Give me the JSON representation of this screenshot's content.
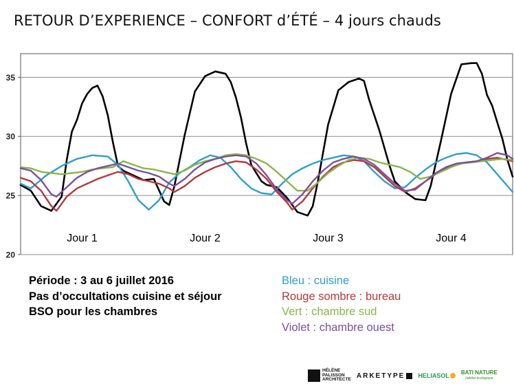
{
  "title": "RETOUR D’EXPERIENCE – CONFORT d’ÉTÉ – 4 jours chauds",
  "info_lines": [
    "Période : 3 au 6 juillet 2016",
    "Pas d’occultations cuisine et séjour",
    "BSO pour les chambres"
  ],
  "legend_items": [
    {
      "label": "Bleu : cuisine",
      "color": "#2e9fc8"
    },
    {
      "label": "Rouge sombre : bureau",
      "color": "#b5383b"
    },
    {
      "label": "Vert : chambre sud",
      "color": "#86b84a"
    },
    {
      "label": "Violet : chambre ouest",
      "color": "#7b4fa0"
    }
  ],
  "logos": {
    "helene_palisson": [
      "HÉLÈNE",
      "PALISSON",
      "ARCHITECTE"
    ],
    "arketype": "ARKETYPE",
    "heliasol": "HELIASOL",
    "bati_nature": [
      "BATI NATURE",
      "habitat écologique"
    ]
  },
  "chart_data": {
    "type": "line",
    "xlim": [
      0,
      96
    ],
    "ylim": [
      20,
      37
    ],
    "yticks": [
      20,
      25,
      30,
      35
    ],
    "day_labels": [
      {
        "label": "Jour 1",
        "x": 12
      },
      {
        "label": "Jour 2",
        "x": 36
      },
      {
        "label": "Jour 3",
        "x": 60
      },
      {
        "label": "Jour 4",
        "x": 84
      }
    ],
    "series": [
      {
        "key": "outdoor",
        "color": "#000000",
        "width": 2.6,
        "points": [
          [
            0,
            25.9
          ],
          [
            2,
            25.4
          ],
          [
            4,
            24.1
          ],
          [
            6,
            23.7
          ],
          [
            8,
            24.9
          ],
          [
            9,
            28.0
          ],
          [
            10,
            30.4
          ],
          [
            11,
            31.4
          ],
          [
            12,
            32.8
          ],
          [
            13,
            33.6
          ],
          [
            14,
            34.1
          ],
          [
            15,
            34.3
          ],
          [
            16,
            33.4
          ],
          [
            17,
            31.8
          ],
          [
            18,
            29.5
          ],
          [
            19,
            27.5
          ],
          [
            20,
            27.1
          ],
          [
            22,
            26.7
          ],
          [
            24,
            26.3
          ],
          [
            26,
            26.4
          ],
          [
            28,
            24.5
          ],
          [
            29,
            24.2
          ],
          [
            30,
            25.8
          ],
          [
            32,
            30.1
          ],
          [
            34,
            33.8
          ],
          [
            36,
            35.1
          ],
          [
            38,
            35.5
          ],
          [
            40,
            35.3
          ],
          [
            41,
            34.6
          ],
          [
            42,
            33.3
          ],
          [
            43,
            31.6
          ],
          [
            44,
            29.4
          ],
          [
            45,
            27.6
          ],
          [
            47,
            26.2
          ],
          [
            48,
            25.9
          ],
          [
            50,
            25.7
          ],
          [
            52,
            24.8
          ],
          [
            54,
            23.6
          ],
          [
            56,
            23.3
          ],
          [
            57,
            24.1
          ],
          [
            58,
            26.2
          ],
          [
            60,
            31.0
          ],
          [
            62,
            33.9
          ],
          [
            64,
            34.6
          ],
          [
            66,
            34.9
          ],
          [
            67,
            34.7
          ],
          [
            68,
            33.1
          ],
          [
            70,
            30.5
          ],
          [
            72,
            27.5
          ],
          [
            73,
            26.2
          ],
          [
            75,
            25.3
          ],
          [
            77,
            24.7
          ],
          [
            79,
            24.6
          ],
          [
            80,
            25.8
          ],
          [
            82,
            29.6
          ],
          [
            84,
            33.6
          ],
          [
            86,
            36.1
          ],
          [
            88,
            36.2
          ],
          [
            89,
            36.2
          ],
          [
            90,
            35.3
          ],
          [
            91,
            33.5
          ],
          [
            92,
            32.6
          ],
          [
            93,
            31.2
          ],
          [
            94,
            29.8
          ],
          [
            95,
            28.0
          ],
          [
            96,
            26.6
          ]
        ]
      },
      {
        "key": "cuisine",
        "color": "#2e9fc8",
        "width": 2.4,
        "points": [
          [
            0,
            26.0
          ],
          [
            2,
            25.6
          ],
          [
            5,
            26.7
          ],
          [
            8,
            27.5
          ],
          [
            11,
            28.1
          ],
          [
            14,
            28.4
          ],
          [
            17,
            28.3
          ],
          [
            19,
            27.6
          ],
          [
            21,
            26.2
          ],
          [
            23,
            24.6
          ],
          [
            25,
            23.8
          ],
          [
            27,
            24.6
          ],
          [
            29,
            26.1
          ],
          [
            31,
            26.9
          ],
          [
            33,
            27.4
          ],
          [
            35,
            28.0
          ],
          [
            37,
            28.4
          ],
          [
            39,
            28.2
          ],
          [
            41,
            27.4
          ],
          [
            43,
            26.4
          ],
          [
            45,
            25.6
          ],
          [
            47,
            25.2
          ],
          [
            49,
            25.1
          ],
          [
            51,
            26.0
          ],
          [
            53,
            26.8
          ],
          [
            55,
            27.3
          ],
          [
            57,
            27.7
          ],
          [
            59,
            28.0
          ],
          [
            61,
            28.2
          ],
          [
            63,
            28.4
          ],
          [
            65,
            28.3
          ],
          [
            67,
            27.9
          ],
          [
            69,
            27.0
          ],
          [
            71,
            26.2
          ],
          [
            73,
            25.6
          ],
          [
            75,
            25.7
          ],
          [
            77,
            26.5
          ],
          [
            79,
            27.2
          ],
          [
            81,
            27.8
          ],
          [
            83,
            28.2
          ],
          [
            85,
            28.5
          ],
          [
            87,
            28.6
          ],
          [
            89,
            28.4
          ],
          [
            91,
            27.8
          ],
          [
            93,
            26.8
          ],
          [
            95,
            25.8
          ],
          [
            96,
            25.3
          ]
        ]
      },
      {
        "key": "bureau",
        "color": "#b5383b",
        "width": 2.4,
        "points": [
          [
            0,
            26.5
          ],
          [
            2,
            26.2
          ],
          [
            4,
            25.4
          ],
          [
            6,
            24.1
          ],
          [
            7,
            23.7
          ],
          [
            9,
            24.9
          ],
          [
            11,
            25.6
          ],
          [
            13,
            26.0
          ],
          [
            15,
            26.4
          ],
          [
            17,
            26.7
          ],
          [
            19,
            27.0
          ],
          [
            21,
            26.8
          ],
          [
            23,
            26.4
          ],
          [
            25,
            26.2
          ],
          [
            27,
            26.0
          ],
          [
            29,
            25.6
          ],
          [
            30,
            25.3
          ],
          [
            32,
            25.8
          ],
          [
            34,
            26.5
          ],
          [
            36,
            27.0
          ],
          [
            38,
            27.4
          ],
          [
            40,
            27.7
          ],
          [
            42,
            27.9
          ],
          [
            44,
            27.8
          ],
          [
            46,
            27.2
          ],
          [
            48,
            26.4
          ],
          [
            50,
            25.3
          ],
          [
            52,
            24.4
          ],
          [
            53,
            23.8
          ],
          [
            55,
            24.5
          ],
          [
            57,
            25.6
          ],
          [
            59,
            26.6
          ],
          [
            61,
            27.4
          ],
          [
            63,
            27.8
          ],
          [
            65,
            28.0
          ],
          [
            67,
            27.9
          ],
          [
            69,
            27.4
          ],
          [
            71,
            26.6
          ],
          [
            73,
            25.8
          ],
          [
            75,
            25.3
          ],
          [
            77,
            25.6
          ],
          [
            79,
            26.2
          ],
          [
            81,
            26.8
          ],
          [
            83,
            27.3
          ],
          [
            85,
            27.6
          ],
          [
            87,
            27.8
          ],
          [
            89,
            27.9
          ],
          [
            91,
            28.1
          ],
          [
            93,
            28.2
          ],
          [
            95,
            28.0
          ],
          [
            96,
            27.9
          ]
        ]
      },
      {
        "key": "chambre_sud",
        "color": "#86b84a",
        "width": 2.4,
        "points": [
          [
            0,
            27.4
          ],
          [
            2,
            27.3
          ],
          [
            4,
            27.0
          ],
          [
            6,
            26.9
          ],
          [
            8,
            26.8
          ],
          [
            10,
            26.9
          ],
          [
            12,
            27.0
          ],
          [
            14,
            27.2
          ],
          [
            16,
            27.3
          ],
          [
            18,
            27.4
          ],
          [
            20,
            27.9
          ],
          [
            22,
            27.6
          ],
          [
            24,
            27.3
          ],
          [
            26,
            27.2
          ],
          [
            28,
            27.0
          ],
          [
            30,
            26.8
          ],
          [
            32,
            27.1
          ],
          [
            34,
            27.6
          ],
          [
            36,
            27.9
          ],
          [
            38,
            28.1
          ],
          [
            40,
            28.4
          ],
          [
            42,
            28.5
          ],
          [
            44,
            28.4
          ],
          [
            46,
            28.1
          ],
          [
            48,
            27.7
          ],
          [
            50,
            27.0
          ],
          [
            52,
            26.2
          ],
          [
            54,
            25.4
          ],
          [
            56,
            25.4
          ],
          [
            58,
            26.1
          ],
          [
            60,
            26.9
          ],
          [
            62,
            27.5
          ],
          [
            64,
            28.0
          ],
          [
            66,
            28.2
          ],
          [
            68,
            28.1
          ],
          [
            70,
            27.8
          ],
          [
            72,
            27.6
          ],
          [
            74,
            27.4
          ],
          [
            76,
            27.0
          ],
          [
            78,
            26.4
          ],
          [
            80,
            26.6
          ],
          [
            82,
            27.0
          ],
          [
            84,
            27.4
          ],
          [
            86,
            27.7
          ],
          [
            88,
            27.8
          ],
          [
            90,
            27.9
          ],
          [
            92,
            28.0
          ],
          [
            94,
            28.1
          ],
          [
            96,
            28.0
          ]
        ]
      },
      {
        "key": "chambre_ouest",
        "color": "#7b4fa0",
        "width": 2.4,
        "points": [
          [
            0,
            27.3
          ],
          [
            2,
            27.1
          ],
          [
            4,
            26.3
          ],
          [
            6,
            25.1
          ],
          [
            7,
            24.9
          ],
          [
            9,
            25.7
          ],
          [
            11,
            26.5
          ],
          [
            13,
            27.0
          ],
          [
            15,
            27.3
          ],
          [
            17,
            27.5
          ],
          [
            19,
            27.7
          ],
          [
            21,
            27.4
          ],
          [
            23,
            27.1
          ],
          [
            25,
            26.9
          ],
          [
            27,
            26.6
          ],
          [
            29,
            26.0
          ],
          [
            30,
            25.8
          ],
          [
            32,
            26.4
          ],
          [
            34,
            27.2
          ],
          [
            36,
            27.8
          ],
          [
            38,
            28.1
          ],
          [
            40,
            28.3
          ],
          [
            42,
            28.4
          ],
          [
            44,
            28.3
          ],
          [
            46,
            27.7
          ],
          [
            48,
            26.7
          ],
          [
            50,
            25.5
          ],
          [
            52,
            24.6
          ],
          [
            53,
            24.3
          ],
          [
            55,
            25.1
          ],
          [
            57,
            26.2
          ],
          [
            59,
            27.1
          ],
          [
            61,
            27.8
          ],
          [
            63,
            28.1
          ],
          [
            65,
            28.3
          ],
          [
            67,
            28.1
          ],
          [
            69,
            27.6
          ],
          [
            71,
            26.8
          ],
          [
            73,
            26.0
          ],
          [
            75,
            25.4
          ],
          [
            77,
            25.5
          ],
          [
            79,
            26.2
          ],
          [
            81,
            26.9
          ],
          [
            83,
            27.4
          ],
          [
            85,
            27.7
          ],
          [
            87,
            27.8
          ],
          [
            89,
            27.9
          ],
          [
            91,
            28.2
          ],
          [
            93,
            28.6
          ],
          [
            95,
            28.4
          ],
          [
            96,
            28.1
          ]
        ]
      }
    ]
  }
}
